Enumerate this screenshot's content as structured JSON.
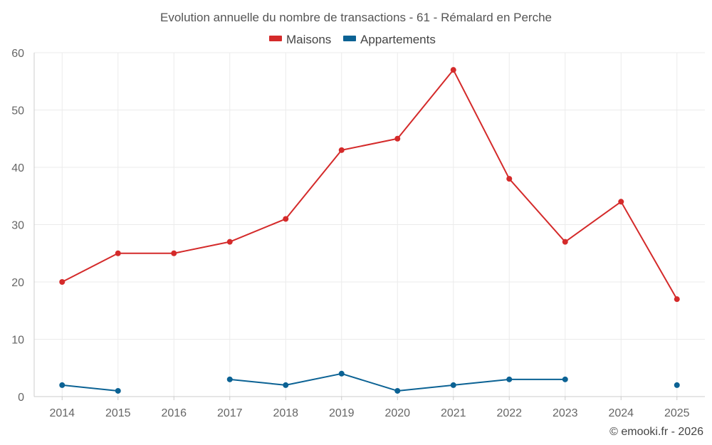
{
  "chart_data": {
    "type": "line",
    "title": "Evolution annuelle du nombre de transactions - 61 - Rémalard en Perche",
    "categories": [
      "2014",
      "2015",
      "2016",
      "2017",
      "2018",
      "2019",
      "2020",
      "2021",
      "2022",
      "2023",
      "2024",
      "2025"
    ],
    "series": [
      {
        "name": "Maisons",
        "color": "#d42a2a",
        "values": [
          20,
          25,
          25,
          27,
          31,
          43,
          45,
          57,
          38,
          27,
          34,
          17
        ]
      },
      {
        "name": "Appartements",
        "color": "#0b6294",
        "values": [
          2,
          1,
          null,
          3,
          2,
          4,
          1,
          2,
          3,
          3,
          null,
          2
        ]
      }
    ],
    "ylim": [
      0,
      60
    ],
    "yticks": [
      "0",
      "10",
      "20",
      "30",
      "40",
      "50",
      "60"
    ],
    "xlabel": "",
    "ylabel": "",
    "grid": true,
    "legend_position": "top-center"
  },
  "footer": {
    "credit": "© emooki.fr - 2026"
  }
}
